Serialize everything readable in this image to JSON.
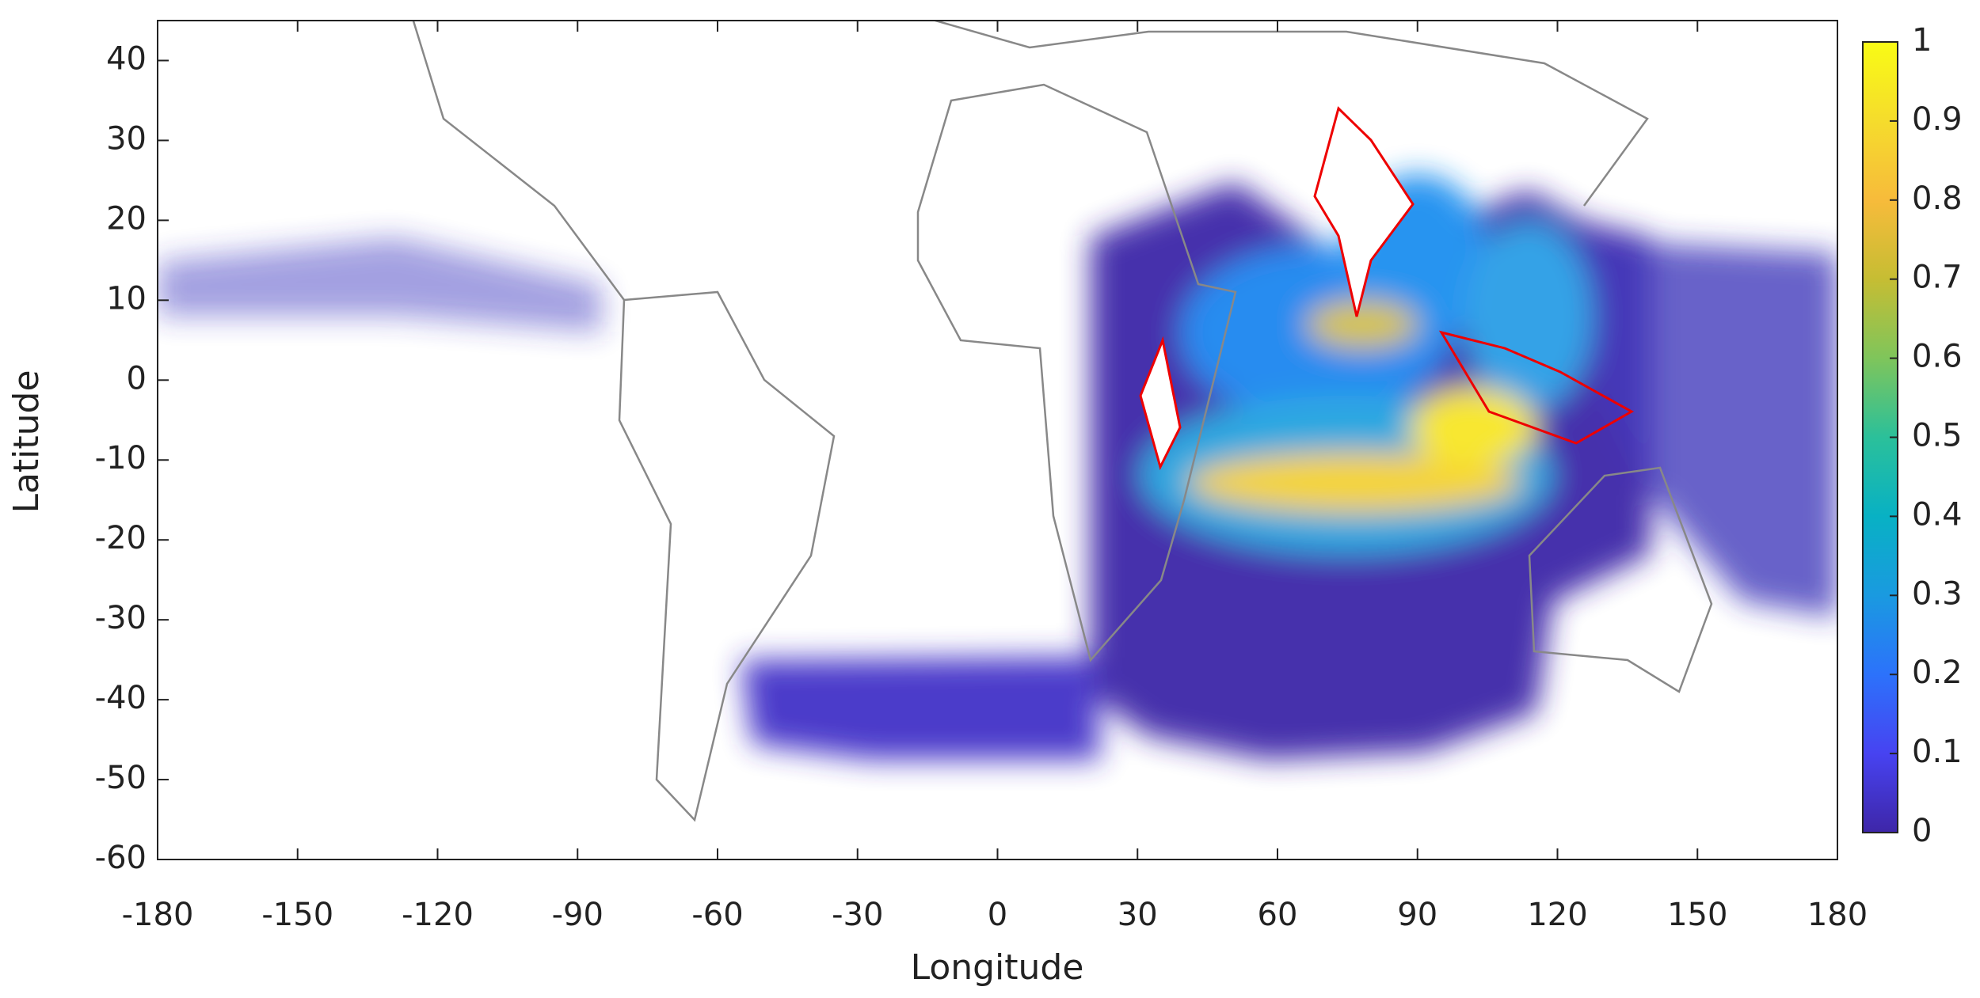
{
  "chart_data": {
    "type": "map",
    "xlabel": "Longitude",
    "ylabel": "Latitude",
    "xlim": [
      -180,
      180
    ],
    "ylim": [
      -60,
      45
    ],
    "xticks": [
      -180,
      -150,
      -120,
      -90,
      -60,
      -30,
      0,
      30,
      60,
      90,
      120,
      150,
      180
    ],
    "yticks": [
      -60,
      -50,
      -40,
      -30,
      -20,
      -10,
      0,
      10,
      20,
      30,
      40
    ],
    "colorbar": {
      "lim": [
        0,
        1
      ],
      "ticks": [
        0,
        0.1,
        0.2,
        0.3,
        0.4,
        0.5,
        0.6,
        0.7,
        0.8,
        0.9,
        1
      ],
      "colors": [
        "#3e26a8",
        "#4743f1",
        "#2c72fb",
        "#1a9ae0",
        "#08b1c4",
        "#2bc09a",
        "#7fc55b",
        "#c6bd33",
        "#f7bb3b",
        "#f5dc2c",
        "#f9fb15"
      ]
    }
  }
}
